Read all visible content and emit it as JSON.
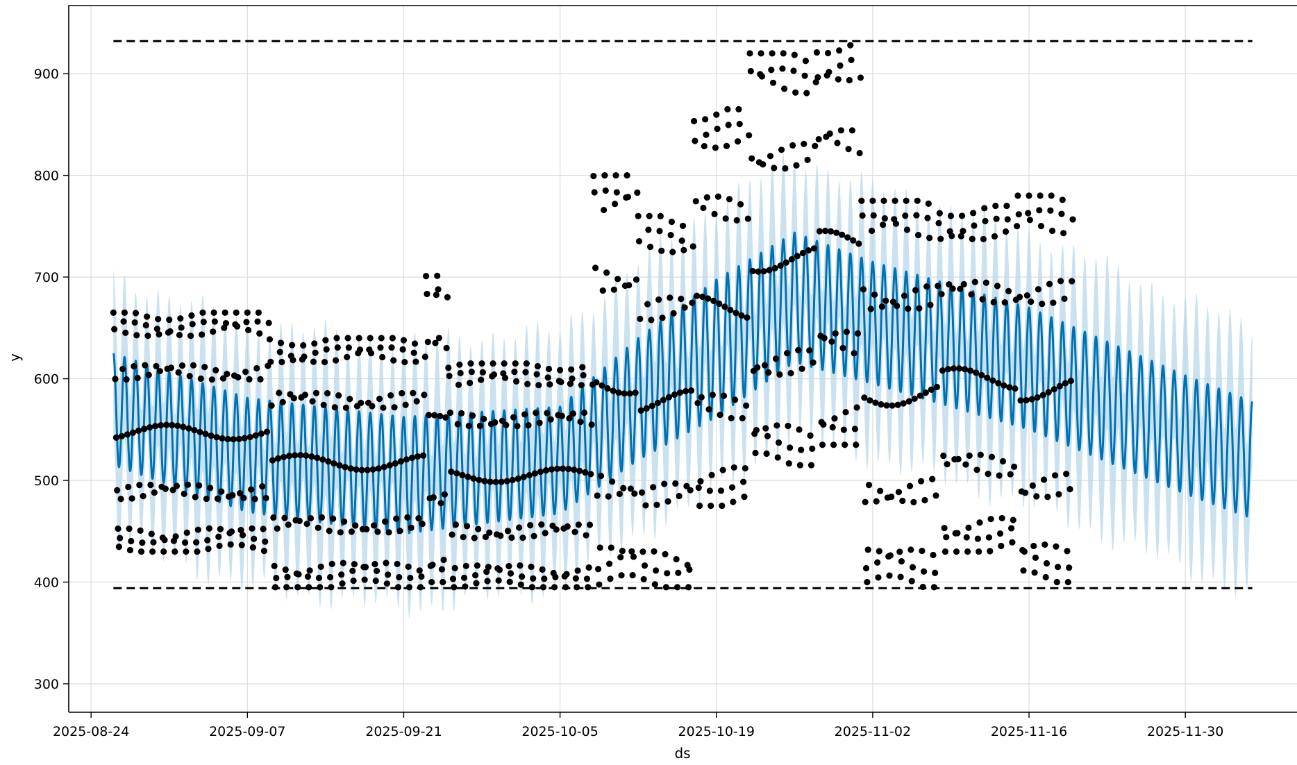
{
  "chart_data": {
    "type": "line",
    "xlabel": "ds",
    "ylabel": "y",
    "x_type": "date",
    "xlim": [
      "2025-08-22",
      "2025-12-10"
    ],
    "ylim": [
      272,
      967
    ],
    "grid": true,
    "x_ticks": [
      "2025-08-24",
      "2025-09-07",
      "2025-09-21",
      "2025-10-05",
      "2025-10-19",
      "2025-11-02",
      "2025-11-16",
      "2025-11-30"
    ],
    "y_ticks": [
      300,
      400,
      500,
      600,
      700,
      800,
      900
    ],
    "forecast_range": [
      "2025-08-26",
      "2025-12-06"
    ],
    "history_range": [
      "2025-08-26",
      "2025-11-20"
    ],
    "cap": 932,
    "floor": 394,
    "colors": {
      "forecast": "#0072B2",
      "interval": "#b8d8ea",
      "observations": "#000000",
      "cap_floor": "#000000"
    },
    "series": [
      {
        "mark": "line",
        "trend": [
          [
            "2025-08-26",
            570
          ],
          [
            "2025-09-07",
            525
          ],
          [
            "2025-09-21",
            505
          ],
          [
            "2025-10-05",
            520
          ],
          [
            "2025-10-12",
            580
          ],
          [
            "2025-10-19",
            630
          ],
          [
            "2025-10-26",
            680
          ],
          [
            "2025-11-02",
            655
          ],
          [
            "2025-11-16",
            610
          ],
          [
            "2025-11-30",
            545
          ],
          [
            "2025-12-06",
            520
          ]
        ],
        "daily_amplitude": [
          [
            "2025-08-26",
            110
          ],
          [
            "2025-09-21",
            115
          ],
          [
            "2025-10-05",
            105
          ],
          [
            "2025-10-19",
            135
          ],
          [
            "2025-11-02",
            120
          ],
          [
            "2025-11-16",
            120
          ],
          [
            "2025-12-06",
            115
          ]
        ]
      },
      {
        "mark": "band",
        "half_width": 75
      },
      {
        "mark": "scatter",
        "periods": [
          {
            "start": "2025-08-26",
            "end": "2025-09-09",
            "low": 430,
            "high": 665
          },
          {
            "start": "2025-09-09",
            "end": "2025-09-23",
            "low": 395,
            "high": 640
          },
          {
            "start": "2025-09-23",
            "end": "2025-09-25",
            "low": 400,
            "high": 710
          },
          {
            "start": "2025-09-25",
            "end": "2025-10-08",
            "low": 395,
            "high": 615
          },
          {
            "start": "2025-10-08",
            "end": "2025-10-12",
            "low": 395,
            "high": 800
          },
          {
            "start": "2025-10-12",
            "end": "2025-10-17",
            "low": 395,
            "high": 760
          },
          {
            "start": "2025-10-17",
            "end": "2025-10-22",
            "low": 475,
            "high": 865
          },
          {
            "start": "2025-10-22",
            "end": "2025-10-28",
            "low": 515,
            "high": 920
          },
          {
            "start": "2025-10-28",
            "end": "2025-11-01",
            "low": 535,
            "high": 932
          },
          {
            "start": "2025-11-01",
            "end": "2025-11-08",
            "low": 395,
            "high": 775
          },
          {
            "start": "2025-11-08",
            "end": "2025-11-15",
            "low": 430,
            "high": 770
          },
          {
            "start": "2025-11-15",
            "end": "2025-11-20",
            "low": 400,
            "high": 780
          }
        ]
      }
    ]
  }
}
